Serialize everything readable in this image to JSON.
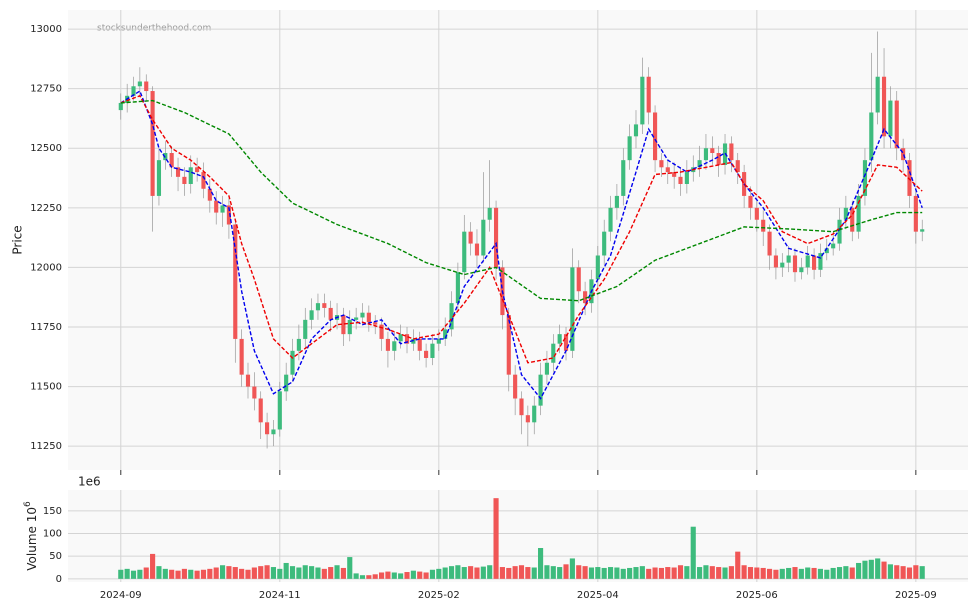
{
  "chart_data": {
    "type": "candlestick",
    "watermark": "stocksunderthehood.com",
    "ylabel": "Price",
    "up_color": "#3dbb7d",
    "down_color": "#f05656",
    "grid": true,
    "xlim": [
      -8.3,
      133.2
    ],
    "xticks": [
      {
        "value": 0,
        "label": "2024-09"
      },
      {
        "value": 25,
        "label": "2024-11"
      },
      {
        "value": 50,
        "label": "2025-02"
      },
      {
        "value": 75,
        "label": "2025-04"
      },
      {
        "value": 100,
        "label": "2025-06"
      },
      {
        "value": 125,
        "label": "2025-09"
      }
    ],
    "ylim": [
      11150,
      13080
    ],
    "yticks": [
      11250,
      11500,
      11750,
      12000,
      12250,
      12500,
      12750,
      13000
    ],
    "ohlc": [
      [
        12660,
        12730,
        12620,
        12690
      ],
      [
        12690,
        12770,
        12650,
        12720
      ],
      [
        12720,
        12800,
        12700,
        12760
      ],
      [
        12760,
        12840,
        12720,
        12780
      ],
      [
        12780,
        12810,
        12700,
        12740
      ],
      [
        12740,
        12760,
        12150,
        12300
      ],
      [
        12300,
        12500,
        12260,
        12450
      ],
      [
        12450,
        12530,
        12410,
        12480
      ],
      [
        12480,
        12510,
        12380,
        12420
      ],
      [
        12420,
        12460,
        12320,
        12380
      ],
      [
        12380,
        12420,
        12300,
        12350
      ],
      [
        12350,
        12470,
        12310,
        12420
      ],
      [
        12420,
        12460,
        12360,
        12400
      ],
      [
        12400,
        12440,
        12290,
        12330
      ],
      [
        12330,
        12370,
        12230,
        12280
      ],
      [
        12280,
        12320,
        12180,
        12230
      ],
      [
        12230,
        12300,
        12170,
        12260
      ],
      [
        12260,
        12290,
        12120,
        12180
      ],
      [
        12180,
        12200,
        11600,
        11700
      ],
      [
        11700,
        11740,
        11500,
        11550
      ],
      [
        11550,
        11600,
        11450,
        11500
      ],
      [
        11500,
        11560,
        11400,
        11450
      ],
      [
        11450,
        11480,
        11280,
        11350
      ],
      [
        11350,
        11390,
        11240,
        11300
      ],
      [
        11300,
        11360,
        11250,
        11320
      ],
      [
        11320,
        11520,
        11290,
        11480
      ],
      [
        11480,
        11600,
        11440,
        11550
      ],
      [
        11550,
        11700,
        11520,
        11650
      ],
      [
        11650,
        11760,
        11610,
        11700
      ],
      [
        11700,
        11830,
        11660,
        11780
      ],
      [
        11780,
        11870,
        11740,
        11820
      ],
      [
        11820,
        11890,
        11780,
        11850
      ],
      [
        11850,
        11890,
        11790,
        11830
      ],
      [
        11830,
        11860,
        11730,
        11780
      ],
      [
        11780,
        11850,
        11740,
        11800
      ],
      [
        11800,
        11830,
        11670,
        11720
      ],
      [
        11720,
        11820,
        11690,
        11780
      ],
      [
        11780,
        11830,
        11740,
        11790
      ],
      [
        11790,
        11850,
        11760,
        11810
      ],
      [
        11810,
        11840,
        11730,
        11770
      ],
      [
        11770,
        11800,
        11720,
        11760
      ],
      [
        11760,
        11790,
        11650,
        11700
      ],
      [
        11700,
        11730,
        11580,
        11650
      ],
      [
        11650,
        11730,
        11610,
        11690
      ],
      [
        11690,
        11760,
        11660,
        11720
      ],
      [
        11720,
        11750,
        11640,
        11680
      ],
      [
        11680,
        11740,
        11650,
        11700
      ],
      [
        11700,
        11730,
        11610,
        11650
      ],
      [
        11650,
        11680,
        11580,
        11620
      ],
      [
        11620,
        11720,
        11590,
        11680
      ],
      [
        11680,
        11740,
        11650,
        11700
      ],
      [
        11700,
        11790,
        11670,
        11740
      ],
      [
        11740,
        11900,
        11710,
        11850
      ],
      [
        11850,
        12020,
        11820,
        11980
      ],
      [
        11980,
        12220,
        11950,
        12150
      ],
      [
        12150,
        12190,
        12050,
        12100
      ],
      [
        12100,
        12160,
        12000,
        12050
      ],
      [
        12050,
        12400,
        12020,
        12200
      ],
      [
        12200,
        12450,
        12150,
        12250
      ],
      [
        12250,
        12280,
        11950,
        12000
      ],
      [
        12000,
        12030,
        11740,
        11800
      ],
      [
        11800,
        11830,
        11480,
        11550
      ],
      [
        11550,
        11590,
        11380,
        11450
      ],
      [
        11450,
        11480,
        11300,
        11380
      ],
      [
        11380,
        11420,
        11250,
        11350
      ],
      [
        11350,
        11460,
        11300,
        11420
      ],
      [
        11420,
        11600,
        11380,
        11550
      ],
      [
        11550,
        11650,
        11510,
        11600
      ],
      [
        11600,
        11720,
        11560,
        11680
      ],
      [
        11680,
        11760,
        11640,
        11720
      ],
      [
        11720,
        11750,
        11610,
        11650
      ],
      [
        11650,
        12080,
        11620,
        12000
      ],
      [
        12000,
        12030,
        11850,
        11900
      ],
      [
        11900,
        11940,
        11800,
        11850
      ],
      [
        11850,
        11990,
        11810,
        11950
      ],
      [
        11950,
        12090,
        11910,
        12050
      ],
      [
        12050,
        12200,
        12010,
        12150
      ],
      [
        12150,
        12300,
        12110,
        12250
      ],
      [
        12250,
        12350,
        12200,
        12300
      ],
      [
        12300,
        12500,
        12260,
        12450
      ],
      [
        12450,
        12600,
        12410,
        12550
      ],
      [
        12550,
        12660,
        12500,
        12600
      ],
      [
        12600,
        12880,
        12560,
        12800
      ],
      [
        12800,
        12840,
        12600,
        12650
      ],
      [
        12650,
        12680,
        12400,
        12450
      ],
      [
        12450,
        12480,
        12380,
        12420
      ],
      [
        12420,
        12450,
        12350,
        12400
      ],
      [
        12400,
        12440,
        12330,
        12380
      ],
      [
        12380,
        12420,
        12300,
        12350
      ],
      [
        12350,
        12450,
        12310,
        12400
      ],
      [
        12400,
        12470,
        12360,
        12420
      ],
      [
        12420,
        12510,
        12380,
        12450
      ],
      [
        12450,
        12560,
        12410,
        12500
      ],
      [
        12500,
        12550,
        12430,
        12480
      ],
      [
        12480,
        12510,
        12380,
        12430
      ],
      [
        12430,
        12560,
        12390,
        12520
      ],
      [
        12520,
        12550,
        12400,
        12450
      ],
      [
        12450,
        12480,
        12350,
        12400
      ],
      [
        12400,
        12430,
        12250,
        12300
      ],
      [
        12300,
        12340,
        12200,
        12250
      ],
      [
        12250,
        12280,
        12150,
        12200
      ],
      [
        12200,
        12240,
        12090,
        12150
      ],
      [
        12150,
        12180,
        11990,
        12050
      ],
      [
        12050,
        12080,
        11950,
        12000
      ],
      [
        12000,
        12060,
        11960,
        12020
      ],
      [
        12020,
        12090,
        11980,
        12050
      ],
      [
        12050,
        12080,
        11940,
        11980
      ],
      [
        11980,
        12040,
        11950,
        12000
      ],
      [
        12000,
        12090,
        11970,
        12050
      ],
      [
        12050,
        12080,
        11950,
        11990
      ],
      [
        11990,
        12100,
        11960,
        12060
      ],
      [
        12060,
        12120,
        12030,
        12080
      ],
      [
        12080,
        12150,
        12050,
        12100
      ],
      [
        12100,
        12250,
        12070,
        12200
      ],
      [
        12200,
        12300,
        12160,
        12250
      ],
      [
        12250,
        12280,
        12110,
        12150
      ],
      [
        12150,
        12350,
        12120,
        12300
      ],
      [
        12300,
        12500,
        12260,
        12450
      ],
      [
        12450,
        12900,
        12400,
        12650
      ],
      [
        12650,
        12990,
        12600,
        12800
      ],
      [
        12800,
        12920,
        12500,
        12550
      ],
      [
        12550,
        12760,
        12500,
        12700
      ],
      [
        12700,
        12740,
        12450,
        12500
      ],
      [
        12500,
        12540,
        12400,
        12450
      ],
      [
        12450,
        12480,
        12250,
        12300
      ],
      [
        12300,
        12330,
        12100,
        12150
      ],
      [
        12150,
        12200,
        12110,
        12160
      ]
    ],
    "moving_averages": [
      {
        "color": "#0000ee",
        "x": [
          0,
          3,
          5,
          6,
          8,
          11,
          13,
          15,
          17,
          19,
          21,
          24,
          27,
          30,
          33,
          35,
          38,
          41,
          44,
          47,
          51,
          54,
          59,
          60,
          63,
          66,
          70,
          74,
          77,
          81,
          83,
          86,
          89,
          93,
          95,
          98,
          101,
          105,
          110,
          114,
          118,
          120,
          123,
          126
        ],
        "values": [
          12690,
          12740,
          12600,
          12500,
          12420,
          12400,
          12380,
          12280,
          12250,
          11900,
          11650,
          11470,
          11520,
          11700,
          11780,
          11800,
          11760,
          11780,
          11680,
          11700,
          11700,
          11920,
          12100,
          11900,
          11550,
          11450,
          11650,
          11900,
          12050,
          12400,
          12580,
          12450,
          12400,
          12450,
          12480,
          12350,
          12250,
          12080,
          12040,
          12200,
          12450,
          12580,
          12480,
          12250
        ]
      },
      {
        "color": "#ee0000",
        "x": [
          0,
          3,
          5,
          8,
          11,
          14,
          17,
          19,
          21,
          24,
          27,
          31,
          34,
          38,
          42,
          46,
          50,
          54,
          58,
          61,
          64,
          68,
          72,
          76,
          80,
          84,
          88,
          92,
          96,
          98,
          101,
          104,
          108,
          112,
          115,
          119,
          122,
          126
        ],
        "values": [
          12690,
          12720,
          12620,
          12500,
          12450,
          12380,
          12300,
          12100,
          11950,
          11700,
          11620,
          11700,
          11760,
          11770,
          11740,
          11700,
          11720,
          11850,
          12000,
          11800,
          11600,
          11620,
          11800,
          11950,
          12150,
          12390,
          12400,
          12420,
          12440,
          12350,
          12280,
          12150,
          12100,
          12140,
          12220,
          12430,
          12420,
          12320
        ]
      },
      {
        "color": "#008800",
        "x": [
          0,
          5,
          10,
          17,
          22,
          27,
          34,
          42,
          48,
          54,
          59,
          66,
          72,
          78,
          84,
          90,
          98,
          106,
          112,
          118,
          122,
          126
        ],
        "values": [
          12690,
          12700,
          12650,
          12560,
          12400,
          12270,
          12180,
          12100,
          12020,
          11970,
          12000,
          11870,
          11860,
          11920,
          12030,
          12090,
          12170,
          12160,
          12150,
          12200,
          12230,
          12230
        ]
      }
    ],
    "volume_panel": {
      "ylabel": "Volume  10",
      "ylabel_exponent": "6",
      "offset_label": "1e6",
      "ylim": [
        -7,
        196
      ],
      "yticks": [
        0,
        50,
        100,
        150
      ],
      "values": [
        20,
        22,
        18,
        20,
        25,
        55,
        28,
        22,
        20,
        18,
        22,
        20,
        18,
        20,
        22,
        25,
        30,
        28,
        26,
        22,
        20,
        25,
        28,
        30,
        26,
        22,
        35,
        28,
        25,
        30,
        28,
        25,
        22,
        26,
        30,
        24,
        48,
        12,
        8,
        8,
        10,
        14,
        16,
        14,
        12,
        15,
        18,
        16,
        14,
        20,
        22,
        25,
        28,
        30,
        26,
        28,
        25,
        27,
        30,
        178,
        26,
        24,
        28,
        30,
        26,
        25,
        68,
        30,
        28,
        26,
        32,
        45,
        30,
        28,
        25,
        26,
        24,
        26,
        25,
        22,
        24,
        26,
        28,
        22,
        25,
        24,
        26,
        25,
        30,
        28,
        115,
        26,
        30,
        28,
        26,
        25,
        28,
        60,
        30,
        26,
        25,
        24,
        22,
        20,
        22,
        24,
        26,
        22,
        25,
        24,
        22,
        20,
        24,
        26,
        28,
        25,
        35,
        40,
        42,
        45,
        38,
        32,
        30,
        28,
        25,
        30,
        28
      ]
    }
  }
}
